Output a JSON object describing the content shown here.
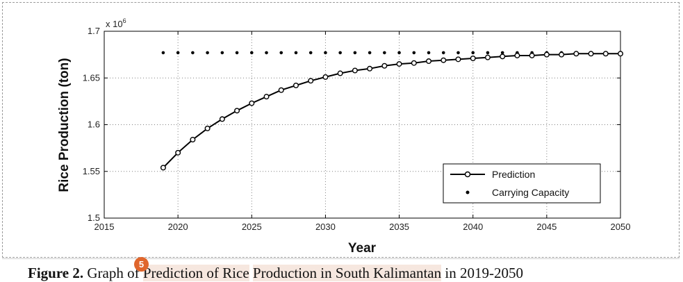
{
  "chart_data": {
    "type": "line",
    "xlabel": "Year",
    "ylabel": "Rice Production (ton)",
    "y_multiplier_label": "x 10",
    "y_multiplier_exponent": "6",
    "xlim": [
      2015,
      2050
    ],
    "ylim": [
      1.5,
      1.7
    ],
    "x_ticks": [
      "2015",
      "2020",
      "2025",
      "2030",
      "2035",
      "2040",
      "2045",
      "2050"
    ],
    "y_ticks": [
      "1.5",
      "1.55",
      "1.6",
      "1.65",
      "1.7"
    ],
    "grid": true,
    "legend_position": "bottom-right",
    "x": [
      2019,
      2020,
      2021,
      2022,
      2023,
      2024,
      2025,
      2026,
      2027,
      2028,
      2029,
      2030,
      2031,
      2032,
      2033,
      2034,
      2035,
      2036,
      2037,
      2038,
      2039,
      2040,
      2041,
      2042,
      2043,
      2044,
      2045,
      2046,
      2047,
      2048,
      2049,
      2050
    ],
    "series": [
      {
        "name": "Prediction",
        "style": "line-circle",
        "values": [
          1.554,
          1.57,
          1.584,
          1.596,
          1.606,
          1.615,
          1.623,
          1.63,
          1.637,
          1.642,
          1.647,
          1.651,
          1.655,
          1.658,
          1.66,
          1.663,
          1.665,
          1.666,
          1.668,
          1.669,
          1.67,
          1.671,
          1.672,
          1.673,
          1.674,
          1.674,
          1.675,
          1.675,
          1.676,
          1.676,
          1.676,
          1.676
        ]
      },
      {
        "name": "Carrying Capacity",
        "style": "dots",
        "values": [
          1.677,
          1.677,
          1.677,
          1.677,
          1.677,
          1.677,
          1.677,
          1.677,
          1.677,
          1.677,
          1.677,
          1.677,
          1.677,
          1.677,
          1.677,
          1.677,
          1.677,
          1.677,
          1.677,
          1.677,
          1.677,
          1.677,
          1.677,
          1.677,
          1.677,
          1.677,
          1.677,
          1.677,
          1.677,
          1.677,
          1.677,
          1.677
        ]
      }
    ]
  },
  "caption": {
    "label": "Figure 2.",
    "text_before": " Graph of ",
    "highlight_1": "Prediction of Rice",
    "text_mid_1": " ",
    "highlight_2": "Production in South Kalimantan",
    "text_after": " in 2019-2050"
  },
  "annotation_badge": "5",
  "colors": {
    "line": "#000000",
    "grid": "#808080",
    "badge": "#e0662c",
    "highlight": "#f6e7df"
  }
}
